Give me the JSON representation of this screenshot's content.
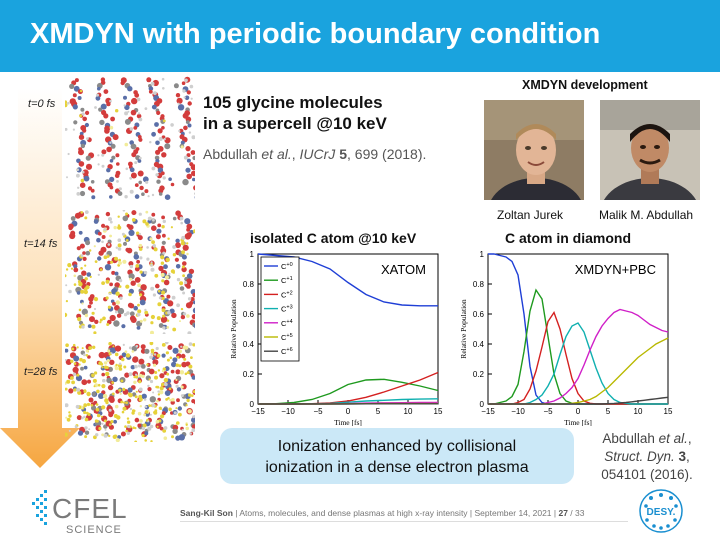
{
  "slide": {
    "title": "XMDYN with periodic boundary condition",
    "time_labels": [
      {
        "t": "t",
        "rest": "=0 fs"
      },
      {
        "t": "t",
        "rest": "=14 fs"
      },
      {
        "t": "t",
        "rest": "=28 fs"
      }
    ],
    "headline_line1": "105 glycine molecules",
    "headline_line2": "in a supercell @10 keV",
    "ref1": {
      "authors": "Abdullah ",
      "etal": "et al.",
      "sep": ", ",
      "journal": "IUCrJ",
      "sp": " ",
      "volume": "5",
      "rest": ", 699 (2018)."
    },
    "dev_title": "XMDYN development",
    "people": [
      {
        "name": "Zoltan Jurek"
      },
      {
        "name": "Malik M. Abdullah"
      }
    ],
    "callout_line1": "Ionization enhanced by collisional",
    "callout_line2": "ionization in a dense electron plasma",
    "ref2": {
      "line1a": "Abdullah ",
      "line1b": "et al.",
      "line1c": ",",
      "line2a": "Struct. Dyn.",
      "line2b": " 3",
      "line2c": ",",
      "line3": "054101 (2016)."
    },
    "footer": {
      "author": "Sang-Kil Son",
      "sep1": " | ",
      "talk": "Atoms, molecules, and dense plasmas at high x-ray intensity",
      "sep2": " | ",
      "date": "September 14, 2021",
      "sep3": " | ",
      "page": "27",
      "total": " / 33"
    },
    "logo_cfel": {
      "main": "CFEL",
      "sub": "SCIENCE"
    },
    "logo_desy": "DESY."
  },
  "chart_data": [
    {
      "type": "line",
      "title": "isolated C atom @10 keV",
      "annotation": "XATOM",
      "xlabel": "Time [fs]",
      "ylabel": "Relative Population",
      "xlim": [
        -15,
        15
      ],
      "ylim": [
        0,
        1
      ],
      "xticks": [
        "−15",
        "−10",
        "−5",
        "0",
        "5",
        "10",
        "15"
      ],
      "yticks": [
        "0",
        "0.2",
        "0.4",
        "0.6",
        "0.8",
        "1"
      ],
      "legend_position": "top-left",
      "x": [
        -15,
        -12,
        -9,
        -6,
        -3,
        0,
        3,
        6,
        9,
        12,
        15
      ],
      "series": [
        {
          "name": "C+0",
          "base": "C",
          "sup": "+0",
          "color": "#1f3fd6",
          "values": [
            1.0,
            0.99,
            0.98,
            0.95,
            0.9,
            0.81,
            0.73,
            0.68,
            0.66,
            0.655,
            0.655
          ]
        },
        {
          "name": "C+1",
          "base": "C",
          "sup": "+1",
          "color": "#1f9a1f",
          "values": [
            0,
            0.002,
            0.01,
            0.03,
            0.07,
            0.13,
            0.16,
            0.165,
            0.145,
            0.12,
            0.09
          ]
        },
        {
          "name": "C+2",
          "base": "C",
          "sup": "+2",
          "color": "#d42020",
          "values": [
            0,
            0,
            0,
            0.002,
            0.007,
            0.02,
            0.045,
            0.08,
            0.12,
            0.16,
            0.21
          ]
        },
        {
          "name": "C+3",
          "base": "C",
          "sup": "+3",
          "color": "#10b0b0",
          "values": [
            0,
            0,
            0,
            0.001,
            0.004,
            0.012,
            0.02,
            0.025,
            0.03,
            0.033,
            0.035
          ]
        },
        {
          "name": "C+4",
          "base": "C",
          "sup": "+4",
          "color": "#d020c8",
          "values": [
            0,
            0,
            0,
            0,
            0.001,
            0.003,
            0.006,
            0.008,
            0.009,
            0.01,
            0.01
          ]
        },
        {
          "name": "C+5",
          "base": "C",
          "sup": "+5",
          "color": "#b8b800",
          "values": [
            0,
            0,
            0,
            0,
            0,
            0.001,
            0.002,
            0.003,
            0.003,
            0.003,
            0.003
          ]
        },
        {
          "name": "C+6",
          "base": "C",
          "sup": "+6",
          "color": "#444444",
          "values": [
            0,
            0,
            0,
            0,
            0,
            0,
            0.001,
            0.001,
            0.001,
            0.001,
            0.001
          ]
        }
      ]
    },
    {
      "type": "line",
      "title": "C atom in diamond",
      "annotation": "XMDYN+PBC",
      "xlabel": "Time [fs]",
      "ylabel": "Relative Population",
      "xlim": [
        -15,
        15
      ],
      "ylim": [
        0,
        1
      ],
      "xticks": [
        "−15",
        "−10",
        "−5",
        "0",
        "5",
        "10",
        "15"
      ],
      "yticks": [
        "0",
        "0.2",
        "0.4",
        "0.6",
        "0.8",
        "1"
      ],
      "x": [
        -15,
        -14,
        -13,
        -12,
        -11,
        -10,
        -9,
        -8,
        -7,
        -6,
        -5,
        -4,
        -3,
        -2,
        -1,
        0,
        1,
        2,
        3,
        4,
        5,
        6,
        7,
        8,
        9,
        10,
        11,
        12,
        13,
        14,
        15
      ],
      "series": [
        {
          "name": "C+0",
          "color": "#1f3fd6",
          "values": [
            1.0,
            1.0,
            0.99,
            0.98,
            0.95,
            0.86,
            0.6,
            0.25,
            0.06,
            0.01,
            0,
            0,
            0,
            0,
            0,
            0,
            0,
            0,
            0,
            0,
            0,
            0,
            0,
            0,
            0,
            0,
            0,
            0,
            0,
            0,
            0
          ]
        },
        {
          "name": "C+1",
          "color": "#1f9a1f",
          "values": [
            0,
            0,
            0.01,
            0.02,
            0.05,
            0.13,
            0.35,
            0.62,
            0.76,
            0.7,
            0.45,
            0.2,
            0.07,
            0.02,
            0.005,
            0,
            0,
            0,
            0,
            0,
            0,
            0,
            0,
            0,
            0,
            0,
            0,
            0,
            0,
            0,
            0
          ]
        },
        {
          "name": "C+2",
          "color": "#d42020",
          "values": [
            0,
            0,
            0,
            0,
            0,
            0.01,
            0.03,
            0.1,
            0.22,
            0.38,
            0.55,
            0.61,
            0.5,
            0.33,
            0.17,
            0.07,
            0.02,
            0.005,
            0,
            0,
            0,
            0,
            0,
            0,
            0,
            0,
            0,
            0,
            0,
            0,
            0
          ]
        },
        {
          "name": "C+3",
          "color": "#10b0b0",
          "values": [
            0,
            0,
            0,
            0,
            0,
            0,
            0,
            0.01,
            0.03,
            0.06,
            0.12,
            0.2,
            0.33,
            0.45,
            0.52,
            0.54,
            0.48,
            0.36,
            0.24,
            0.14,
            0.07,
            0.03,
            0.01,
            0.005,
            0,
            0,
            0,
            0,
            0,
            0,
            0
          ]
        },
        {
          "name": "C+4",
          "color": "#d020c8",
          "values": [
            0,
            0,
            0,
            0,
            0,
            0,
            0,
            0,
            0,
            0,
            0.01,
            0.02,
            0.04,
            0.07,
            0.11,
            0.17,
            0.26,
            0.36,
            0.45,
            0.52,
            0.57,
            0.61,
            0.63,
            0.62,
            0.61,
            0.59,
            0.56,
            0.53,
            0.51,
            0.49,
            0.48
          ]
        },
        {
          "name": "C+5",
          "color": "#b8b800",
          "values": [
            0,
            0,
            0,
            0,
            0,
            0,
            0,
            0,
            0,
            0,
            0,
            0,
            0,
            0,
            0.005,
            0.01,
            0.02,
            0.03,
            0.05,
            0.08,
            0.11,
            0.15,
            0.19,
            0.23,
            0.27,
            0.31,
            0.34,
            0.37,
            0.4,
            0.42,
            0.44
          ]
        },
        {
          "name": "C+6",
          "color": "#444444",
          "values": [
            0,
            0,
            0,
            0,
            0,
            0,
            0,
            0,
            0,
            0,
            0,
            0,
            0,
            0,
            0,
            0,
            0,
            0,
            0,
            0,
            0.002,
            0.004,
            0.007,
            0.01,
            0.015,
            0.02,
            0.025,
            0.03,
            0.035,
            0.04,
            0.045
          ]
        }
      ]
    }
  ]
}
